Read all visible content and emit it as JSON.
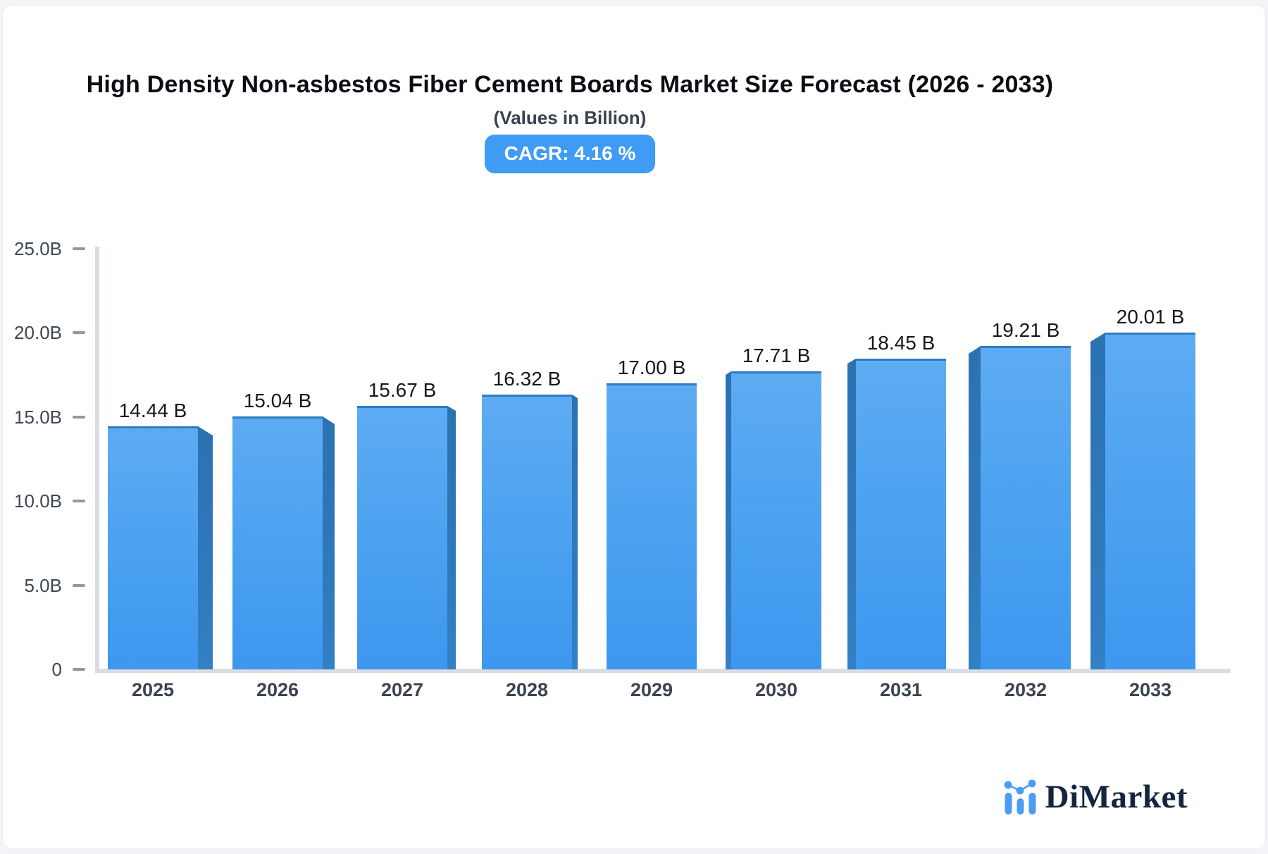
{
  "page": {
    "background": "#f3f4f7",
    "card_background": "#ffffff"
  },
  "header": {
    "title": "High Density Non-asbestos Fiber Cement Boards Market Size Forecast (2026 - 2033)",
    "subtitle": "(Values in Billion)",
    "cagr_label": "CAGR: 4.16 %",
    "badge_color": "#3f9bf4"
  },
  "chart_data": {
    "type": "bar",
    "title": "High Density Non-asbestos Fiber Cement Boards Market Size Forecast (2026 - 2033)",
    "subtitle": "(Values in Billion)",
    "categories": [
      "2025",
      "2026",
      "2027",
      "2028",
      "2029",
      "2030",
      "2031",
      "2032",
      "2033"
    ],
    "values": [
      14.44,
      15.04,
      15.67,
      16.32,
      17.0,
      17.71,
      18.45,
      19.21,
      20.01
    ],
    "value_labels": [
      "14.44 B",
      "15.04 B",
      "15.67 B",
      "16.32 B",
      "17.00 B",
      "17.71 B",
      "18.45 B",
      "19.21 B",
      "20.01 B"
    ],
    "xlabel": "",
    "ylabel": "",
    "ylim": [
      0,
      25
    ],
    "yticks": [
      {
        "value": 25,
        "label": "25.0B"
      },
      {
        "value": 20,
        "label": "20.0B"
      },
      {
        "value": 15,
        "label": "15.0B"
      },
      {
        "value": 10,
        "label": "10.0B"
      },
      {
        "value": 5,
        "label": "5.0B"
      },
      {
        "value": 0,
        "label": "0"
      }
    ],
    "grid": "off",
    "legend": "none",
    "bar_style": "3d-perspective-from-center",
    "bar_color_top": "#5dabf2",
    "bar_color_bottom": "#3e97ef",
    "bar_side_color": "#2f78ba",
    "axis_color": "#d9dde2",
    "tick_color": "#9099a4",
    "label_color": "#3e4654"
  },
  "branding": {
    "logo_text": "DiMarket",
    "logo_icon": "mini-bar-chart",
    "logo_icon_color": "#4a9df3",
    "logo_text_color": "#16253e"
  }
}
